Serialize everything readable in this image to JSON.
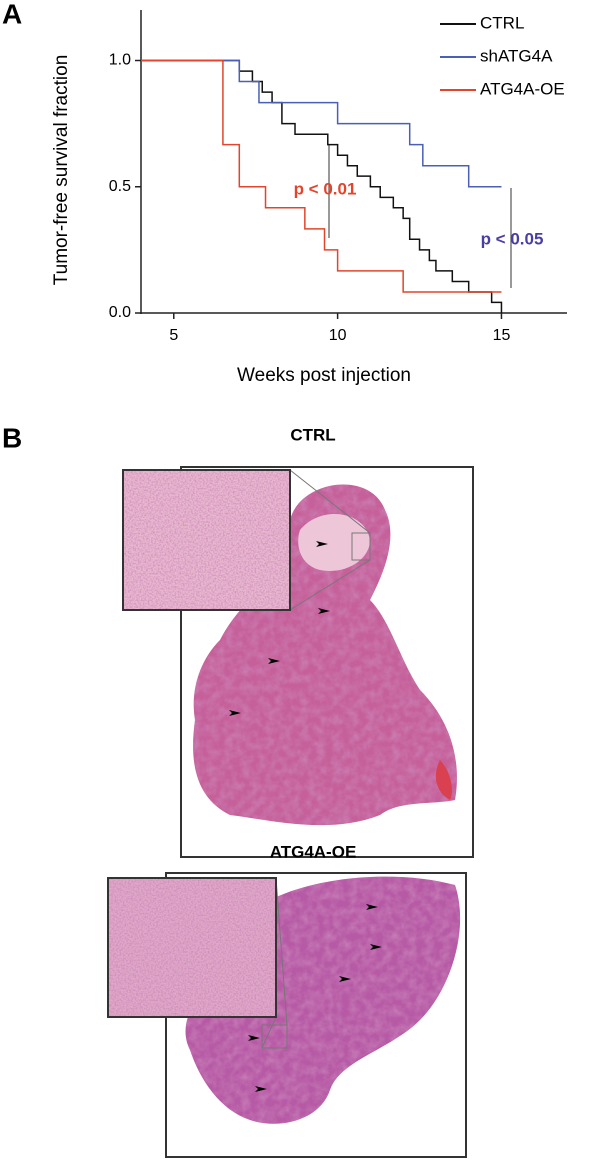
{
  "panels": {
    "a": "A",
    "b": "B"
  },
  "chart_data": {
    "type": "step",
    "ylabel": "Tumor-free survival fraction",
    "xlabel": "Weeks post injection",
    "xlim": [
      4,
      17
    ],
    "xticks": [
      5,
      10,
      15
    ],
    "ylim": [
      0,
      1.2
    ],
    "yticks": [
      {
        "value": 0,
        "label": "0.0"
      },
      {
        "value": 0.5,
        "label": "0.5"
      },
      {
        "value": 1,
        "label": "1.0"
      }
    ],
    "series": [
      {
        "name": "CTRL",
        "color": "#111111",
        "x": [
          4,
          7.0,
          7.4,
          7.7,
          8.0,
          8.3,
          8.7,
          9.7,
          10.0,
          10.3,
          10.6,
          11.0,
          11.3,
          11.7,
          12.0,
          12.2,
          12.5,
          12.8,
          13.0,
          13.5,
          14.0,
          14.7,
          15.0
        ],
        "values": [
          1.0,
          0.958,
          0.917,
          0.875,
          0.833,
          0.75,
          0.708,
          0.667,
          0.625,
          0.583,
          0.542,
          0.5,
          0.458,
          0.417,
          0.375,
          0.292,
          0.25,
          0.208,
          0.167,
          0.125,
          0.083,
          0.042,
          0
        ]
      },
      {
        "name": "shATG4A",
        "color": "#4a5fb5",
        "x": [
          4,
          7.0,
          7.6,
          10.0,
          12.2,
          12.6,
          14.0,
          15.0
        ],
        "values": [
          1.0,
          0.917,
          0.833,
          0.75,
          0.667,
          0.583,
          0.5,
          0.5
        ]
      },
      {
        "name": "ATG4A-OE",
        "color": "#e2452b",
        "x": [
          4,
          6.5,
          7.0,
          7.8,
          9.0,
          9.6,
          10.0,
          12.0,
          15.0
        ],
        "values": [
          1.0,
          0.667,
          0.5,
          0.417,
          0.333,
          0.25,
          0.167,
          0.083,
          0.083
        ]
      }
    ],
    "annotations": [
      "p < 0.01",
      "p < 0.05"
    ]
  },
  "images": [
    {
      "title": "CTRL"
    },
    {
      "title": "ATG4A-OE"
    }
  ]
}
